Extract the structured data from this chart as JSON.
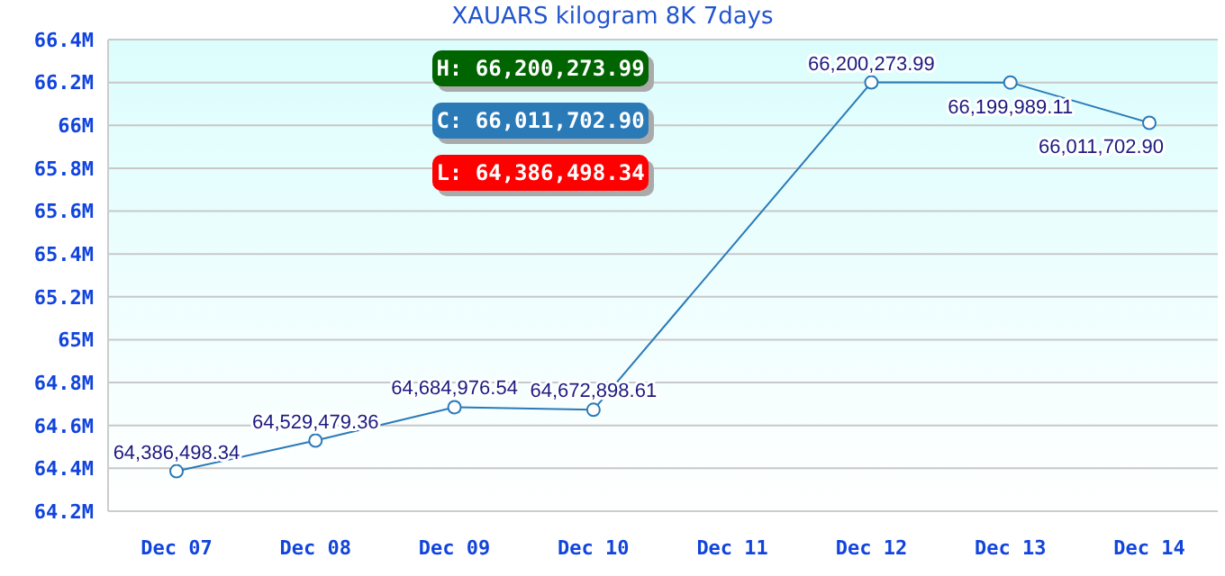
{
  "chart_data": {
    "type": "line",
    "title": "XAUARS kilogram 8K 7days",
    "categories": [
      "Dec 07",
      "Dec 08",
      "Dec 09",
      "Dec 10",
      "Dec 11",
      "Dec 12",
      "Dec 13",
      "Dec 14"
    ],
    "series": [
      {
        "color": "#2a7ab8",
        "values": [
          64386498.34,
          64529479.36,
          64684976.54,
          64672898.61,
          null,
          66200273.99,
          66199989.11,
          66011702.9
        ],
        "value_labels": [
          "64,386,498.34",
          "64,529,479.36",
          "64,684,976.54",
          "64,672,898.61",
          null,
          "66,200,273.99",
          "66,199,989.11",
          "66,011,702.90"
        ]
      }
    ],
    "ylim": [
      64200000,
      66400000
    ],
    "yticks": [
      {
        "value": 64200000,
        "label": "64.2M"
      },
      {
        "value": 64400000,
        "label": "64.4M"
      },
      {
        "value": 64600000,
        "label": "64.6M"
      },
      {
        "value": 64800000,
        "label": "64.8M"
      },
      {
        "value": 65000000,
        "label": "65M"
      },
      {
        "value": 65200000,
        "label": "65.2M"
      },
      {
        "value": 65400000,
        "label": "65.4M"
      },
      {
        "value": 65600000,
        "label": "65.6M"
      },
      {
        "value": 65800000,
        "label": "65.8M"
      },
      {
        "value": 66000000,
        "label": "66M"
      },
      {
        "value": 66200000,
        "label": "66.2M"
      },
      {
        "value": 66400000,
        "label": "66.4M"
      }
    ],
    "grid": "y",
    "legend": false,
    "marker": "circle",
    "line_style": "solid",
    "annotations": [
      "H: 66,200,273.99",
      "C: 66,011,702.90",
      "L: 64,386,498.34"
    ]
  }
}
